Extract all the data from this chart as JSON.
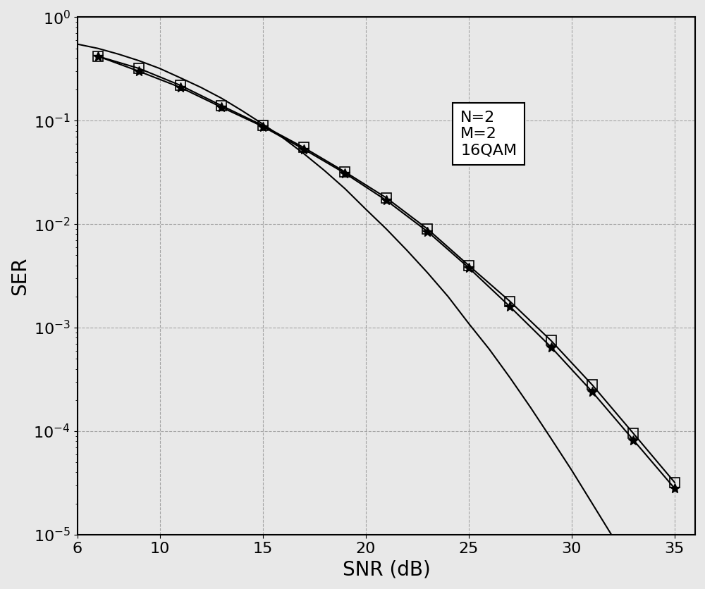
{
  "title": "",
  "xlabel": "SNR (dB)",
  "ylabel": "SER",
  "xlim": [
    6,
    36
  ],
  "ylim_log": [
    -5,
    0
  ],
  "grid_color": "#888888",
  "background_color": "#e8e8e8",
  "legend_text": [
    "N=2",
    "M=2",
    "16QAM"
  ],
  "legend_fontsize": 16,
  "xlabel_fontsize": 20,
  "ylabel_fontsize": 20,
  "tick_fontsize": 16,
  "snr_marked": [
    7,
    9,
    11,
    13,
    15,
    17,
    19,
    21,
    23,
    25,
    27,
    29,
    31,
    33,
    35
  ],
  "ser_curve1_marked": [
    0.42,
    0.32,
    0.22,
    0.14,
    0.09,
    0.055,
    0.032,
    0.018,
    0.009,
    0.004,
    0.0018,
    0.00075,
    0.00028,
    9.5e-05,
    3.2e-05
  ],
  "ser_curve2_marked": [
    0.42,
    0.3,
    0.21,
    0.135,
    0.088,
    0.053,
    0.031,
    0.017,
    0.0085,
    0.0038,
    0.0016,
    0.00065,
    0.00024,
    8.2e-05,
    2.8e-05
  ],
  "snr_smooth": [
    6,
    7,
    8,
    9,
    10,
    11,
    12,
    13,
    14,
    15,
    16,
    17,
    18,
    19,
    20,
    21,
    22,
    23,
    24,
    25,
    26,
    27,
    28,
    29,
    30,
    31,
    32,
    33,
    34,
    35,
    36
  ],
  "ser_smooth": [
    0.55,
    0.5,
    0.44,
    0.38,
    0.32,
    0.26,
    0.21,
    0.165,
    0.125,
    0.093,
    0.068,
    0.048,
    0.033,
    0.022,
    0.014,
    0.009,
    0.0056,
    0.0034,
    0.002,
    0.0011,
    0.00062,
    0.00033,
    0.00017,
    8.5e-05,
    4.2e-05,
    2e-05,
    9.5e-06,
    4.4e-06,
    2e-06,
    9e-07,
    3.8e-07
  ],
  "line_color": "#000000",
  "marker_square": "s",
  "marker_star": "*",
  "marker_size_square": 10,
  "marker_size_star": 10,
  "line_width": 1.5
}
